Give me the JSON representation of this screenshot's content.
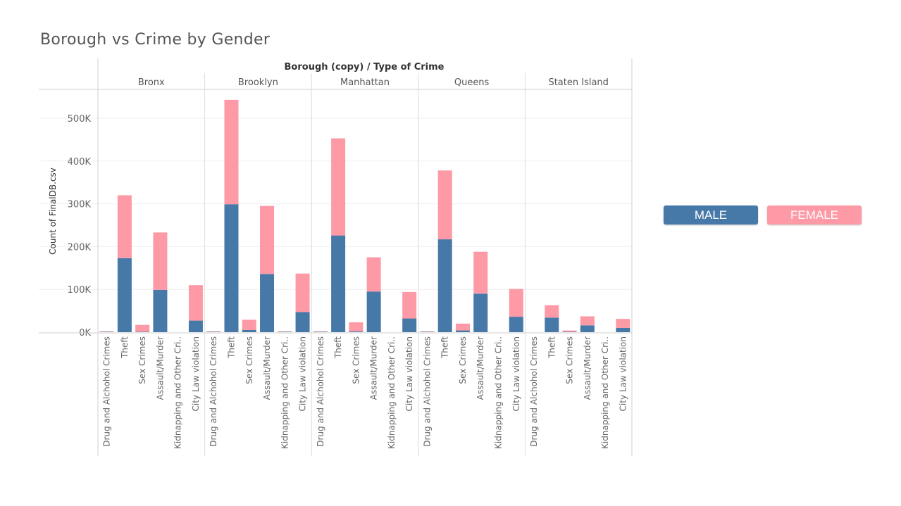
{
  "title": "Borough vs Crime by Gender",
  "legend": {
    "male_label": "MALE",
    "female_label": "FEMALE"
  },
  "colors": {
    "male": "#4678a8",
    "female": "#fd9aa6"
  },
  "chart_data": {
    "type": "bar",
    "stacked": true,
    "column_header": "Borough (copy)  /  Type of Crime",
    "ylabel": "Count of FinalDB.csv",
    "ylim": [
      0,
      550000
    ],
    "yticks": [
      0,
      100000,
      200000,
      300000,
      400000,
      500000
    ],
    "ytick_labels": [
      "0K",
      "100K",
      "200K",
      "300K",
      "400K",
      "500K"
    ],
    "grid": true,
    "categories": [
      "Drug and Alchohol Crimes",
      "Theft",
      "Sex Crimes",
      "Assault/Murder",
      "Kidnapping and Other Cri..",
      "City Law violation"
    ],
    "panels": [
      {
        "borough": "Bronx",
        "male": [
          1000,
          173000,
          1000,
          99000,
          0,
          27000
        ],
        "female": [
          1000,
          147000,
          16000,
          134000,
          0,
          83000
        ]
      },
      {
        "borough": "Brooklyn",
        "male": [
          1000,
          299000,
          5000,
          136000,
          1000,
          47000
        ],
        "female": [
          1000,
          244000,
          24000,
          159000,
          1000,
          90000
        ]
      },
      {
        "borough": "Manhattan",
        "male": [
          1000,
          226000,
          2000,
          95000,
          0,
          32000
        ],
        "female": [
          1000,
          227000,
          21000,
          80000,
          0,
          62000
        ]
      },
      {
        "borough": "Queens",
        "male": [
          1000,
          217000,
          4000,
          90000,
          0,
          36000
        ],
        "female": [
          1000,
          161000,
          16000,
          98000,
          0,
          65000
        ]
      },
      {
        "borough": "Staten Island",
        "male": [
          0,
          34000,
          1000,
          16000,
          0,
          10000
        ],
        "female": [
          0,
          29000,
          3000,
          21000,
          0,
          21000
        ]
      }
    ]
  }
}
